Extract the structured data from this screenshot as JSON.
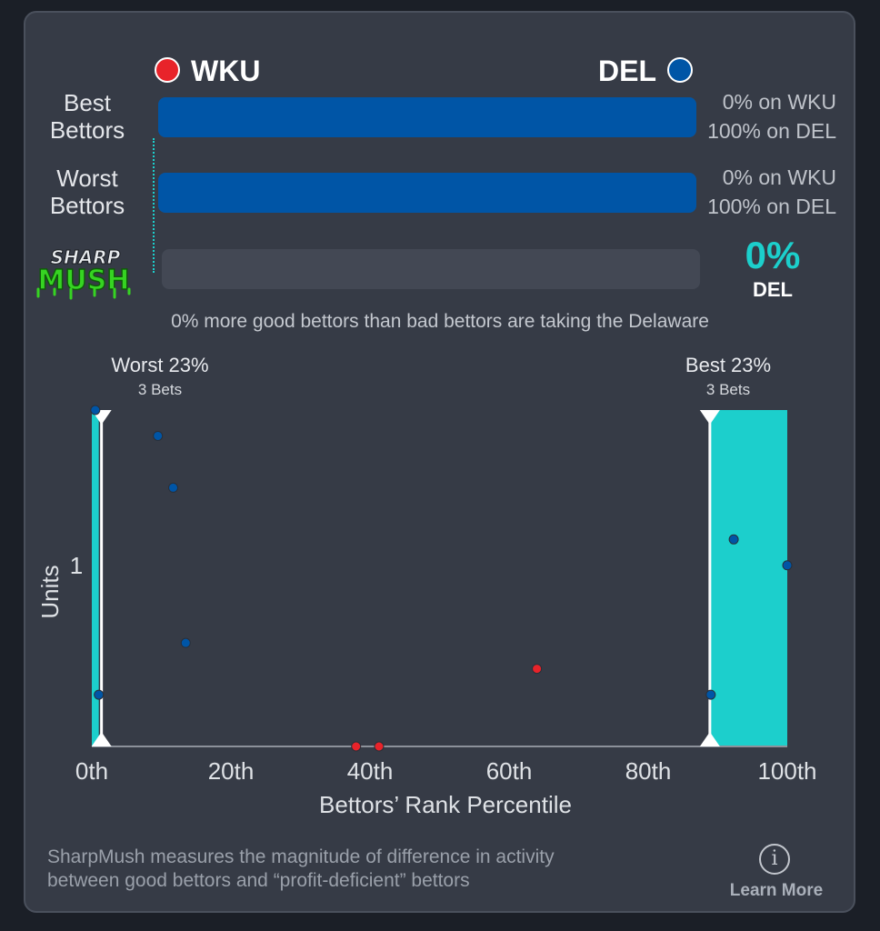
{
  "teams": {
    "left": {
      "name": "WKU",
      "color": "#e8232a"
    },
    "right": {
      "name": "DEL",
      "color": "#0055a6"
    }
  },
  "rows": [
    {
      "label_line1": "Best",
      "label_line2": "Bettors",
      "left_pct": "0% on WKU",
      "right_pct": "100% on DEL",
      "fill": 1.0
    },
    {
      "label_line1": "Worst",
      "label_line2": "Bettors",
      "left_pct": "0% on WKU",
      "right_pct": "100% on DEL",
      "fill": 1.0
    }
  ],
  "logo": {
    "line1": "SHARP",
    "line2": "MUSH"
  },
  "sharpmush": {
    "value": "0%",
    "team": "DEL",
    "fill": 0.0,
    "accent": "#1ccfcc"
  },
  "summary": "0% more good bettors than bad bettors are taking the Delaware",
  "chart_data": {
    "type": "scatter",
    "xlabel": "Bettors’ Rank Percentile",
    "ylabel": "Units",
    "xlim": [
      0,
      100
    ],
    "ylim": [
      0,
      1.3
    ],
    "xticks": [
      "0th",
      "20th",
      "40th",
      "60th",
      "80th",
      "100th"
    ],
    "xtick_values": [
      0,
      20,
      40,
      60,
      80,
      100
    ],
    "yticks": [
      "1"
    ],
    "ytick_values": [
      0.7
    ],
    "worst_range": {
      "title": "Worst 23%",
      "sub": "3 Bets",
      "end": 1
    },
    "best_range": {
      "title": "Best 23%",
      "sub": "3 Bets",
      "start": 89
    },
    "series": [
      {
        "name": "DEL",
        "color": "#0055a6",
        "points": [
          [
            0.5,
            1.3
          ],
          [
            9.5,
            1.2
          ],
          [
            11.7,
            1.0
          ],
          [
            13.5,
            0.4
          ],
          [
            1,
            0.2
          ],
          [
            92.3,
            0.8
          ],
          [
            100,
            0.7
          ],
          [
            89,
            0.2
          ]
        ]
      },
      {
        "name": "WKU",
        "color": "#e8232a",
        "points": [
          [
            38,
            0
          ],
          [
            41.3,
            0
          ],
          [
            64,
            0.3
          ]
        ]
      }
    ]
  },
  "footer": {
    "line1": "SharpMush measures the magnitude of difference in activity",
    "line2": "between good bettors and “profit-deficient” bettors",
    "learn_more": "Learn More",
    "info_glyph": "i"
  }
}
